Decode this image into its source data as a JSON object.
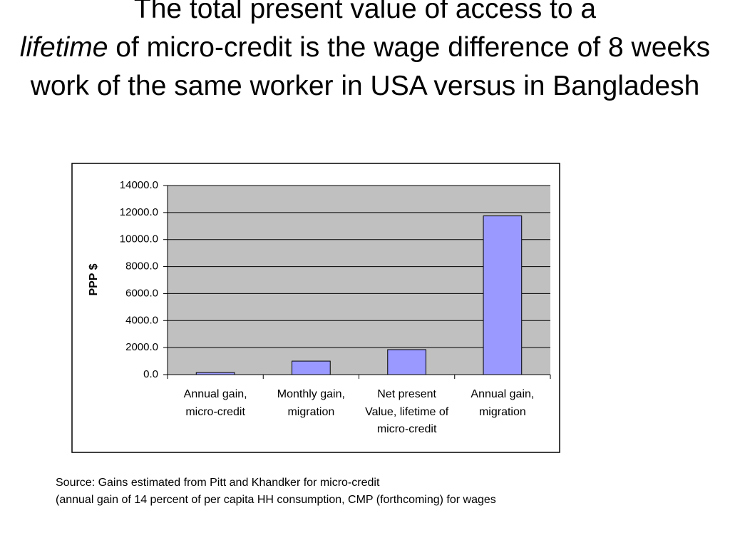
{
  "slide": {
    "title": [
      "The total present value of access to a",
      "lifetime",
      "of micro-credit is the wage difference of 8 weeks work of the same worker in USA versus in Bangladesh"
    ],
    "source": [
      "Source:  Gains estimated from Pitt and Khandker for micro-credit",
      "(annual gain of 14 percent of per capita HH consumption, CMP (forthcoming) for wages"
    ]
  },
  "chart_data": {
    "type": "bar",
    "y_label": "PPP $",
    "categories": [
      "Annual gain, micro-credit",
      "Monthly gain, migration",
      "Net present Value, lifetime of micro-credit",
      "Annual gain, migration"
    ],
    "values": [
      150,
      1000,
      1850,
      11750
    ],
    "color": "#9999ff",
    "ylim": [
      0,
      14000
    ],
    "yticks": [
      {
        "value": 0,
        "label": "0.0"
      },
      {
        "value": 2000,
        "label": "2000.0"
      },
      {
        "value": 4000,
        "label": "4000.0"
      },
      {
        "value": 6000,
        "label": "6000.0"
      },
      {
        "value": 8000,
        "label": "8000.0"
      },
      {
        "value": 10000,
        "label": "10000.0"
      },
      {
        "value": 12000,
        "label": "12000.0"
      },
      {
        "value": 14000,
        "label": "14000.0"
      }
    ],
    "grid": true
  }
}
